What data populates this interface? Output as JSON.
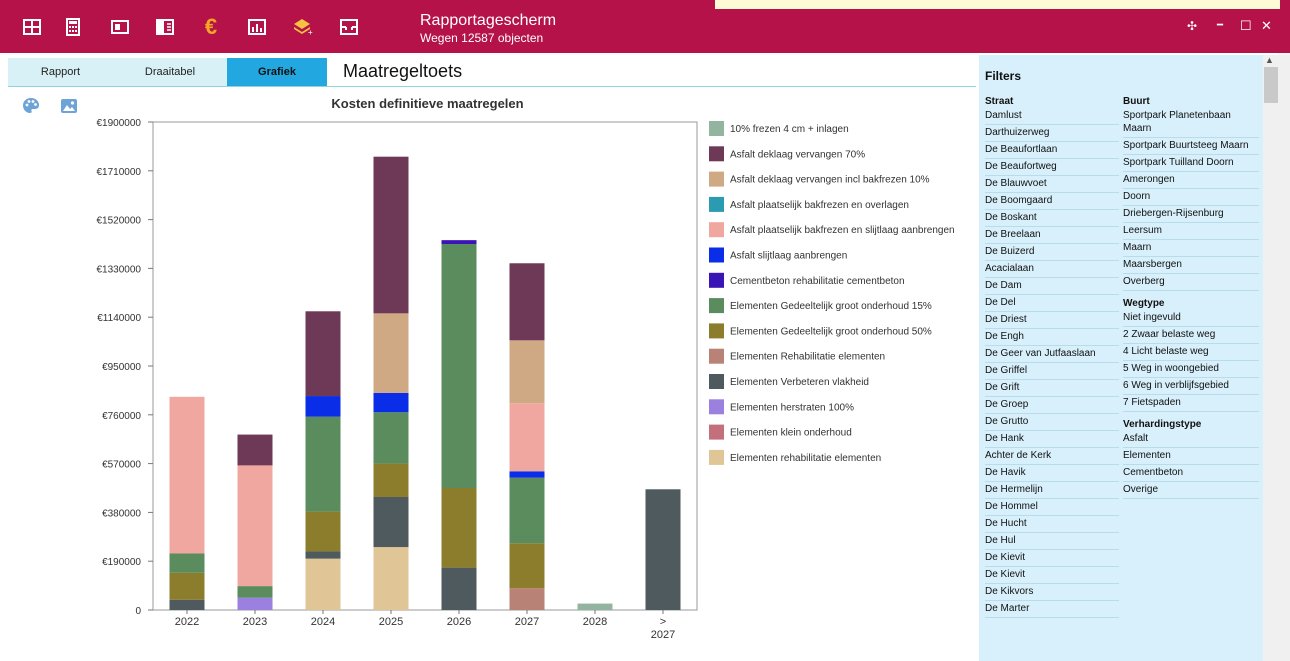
{
  "titlebar": {
    "title": "Rapportagescherm",
    "subtitle": "Wegen 12587 objecten",
    "icons": [
      "grid-icon",
      "calculator-icon",
      "card-icon",
      "layout-icon",
      "euro-icon",
      "chart-icon",
      "layers-icon",
      "inbox-icon"
    ],
    "controls": {
      "move": "✣",
      "minimize": "━",
      "maximize": "☐",
      "close": "✕"
    },
    "colors": {
      "bar": "#b5124a",
      "euro": "#f5a623"
    }
  },
  "tabs": [
    {
      "label": "Rapport"
    },
    {
      "label": "Draaitabel"
    },
    {
      "label": "Grafiek",
      "active": true
    }
  ],
  "section_title": "Maatregeltoets",
  "chart_data": {
    "type": "bar",
    "stacked": true,
    "title": "Kosten definitieve maatregelen",
    "categories": [
      "2022",
      "2023",
      "2024",
      "2025",
      "2026",
      "2027",
      "2028",
      ">\n2027"
    ],
    "ylim": [
      0,
      1900000
    ],
    "yticks": [
      0,
      190000,
      380000,
      570000,
      760000,
      950000,
      1140000,
      1330000,
      1520000,
      1710000,
      1900000
    ],
    "ytick_labels": [
      "0",
      "€190000",
      "€380000",
      "€570000",
      "€760000",
      "€950000",
      "€1140000",
      "€1330000",
      "€1520000",
      "€1710000",
      "€1900000"
    ],
    "legend_position": "right",
    "series": [
      {
        "name": "10% frezen 4 cm + inlagen",
        "color": "#93b5a0",
        "values": [
          0,
          0,
          0,
          0,
          0,
          0,
          25000,
          0
        ]
      },
      {
        "name": "Asfalt deklaag vervangen 70%",
        "color": "#6e3957",
        "values": [
          0,
          120000,
          330000,
          610000,
          0,
          300000,
          0,
          0
        ]
      },
      {
        "name": "Asfalt deklaag vervangen incl bakfrezen 10%",
        "color": "#cfa884",
        "values": [
          0,
          0,
          0,
          310000,
          0,
          245000,
          0,
          0
        ]
      },
      {
        "name": "Asfalt plaatselijk bakfrezen en overlagen",
        "color": "#2a9bb0",
        "values": [
          0,
          0,
          0,
          0,
          0,
          0,
          0,
          0
        ]
      },
      {
        "name": "Asfalt plaatselijk bakfrezen en slijtlaag aanbrengen",
        "color": "#f0a7a0",
        "values": [
          610000,
          470000,
          0,
          0,
          0,
          265000,
          0,
          0
        ]
      },
      {
        "name": "Asfalt slijtlaag aanbrengen",
        "color": "#0a2ee8",
        "values": [
          0,
          0,
          80000,
          75000,
          0,
          25000,
          0,
          0
        ]
      },
      {
        "name": "Cementbeton rehabilitatie cementbeton",
        "color": "#3a14b5",
        "values": [
          0,
          0,
          0,
          0,
          15000,
          0,
          0,
          0
        ]
      },
      {
        "name": "Elementen Gedeeltelijk groot onderhoud 15%",
        "color": "#5a8c5e",
        "values": [
          75000,
          45000,
          370000,
          200000,
          950000,
          255000,
          0,
          0
        ]
      },
      {
        "name": "Elementen Gedeeltelijk groot onderhoud 50%",
        "color": "#8c7d2c",
        "values": [
          105000,
          0,
          155000,
          130000,
          310000,
          175000,
          0,
          0
        ]
      },
      {
        "name": "Elementen Rehabilitatie elementen",
        "color": "#b98276",
        "values": [
          0,
          0,
          0,
          0,
          0,
          85000,
          0,
          0
        ]
      },
      {
        "name": "Elementen Verbeteren vlakheid",
        "color": "#4f5a5f",
        "values": [
          40000,
          0,
          28000,
          195000,
          165000,
          0,
          0,
          470000
        ]
      },
      {
        "name": "Elementen herstraten 100%",
        "color": "#9b80e0",
        "values": [
          0,
          48000,
          0,
          0,
          0,
          0,
          0,
          0
        ]
      },
      {
        "name": "Elementen klein onderhoud",
        "color": "#c4707c",
        "values": [
          0,
          0,
          0,
          0,
          0,
          0,
          0,
          0
        ]
      },
      {
        "name": "Elementen rehabilitatie elementen",
        "color": "#e0c596",
        "values": [
          0,
          0,
          200000,
          245000,
          0,
          0,
          0,
          0
        ]
      }
    ]
  },
  "filters": {
    "title": "Filters",
    "straat": {
      "title": "Straat",
      "items": [
        "Damlust",
        "Darthuizerweg",
        "De Beaufortlaan",
        "De Beaufortweg",
        "De Blauwvoet",
        "De Boomgaard",
        "De Boskant",
        "De Breelaan",
        "De Buizerd",
        "Acacialaan",
        "De Dam",
        "De Del",
        "De Driest",
        "De Engh",
        "De Geer van Jutfaaslaan",
        "De Griffel",
        "De Grift",
        "De Groep",
        "De Grutto",
        "De Hank",
        "Achter de Kerk",
        "De Havik",
        "De Hermelijn",
        "De Hommel",
        "De Hucht",
        "De Hul",
        "De Kievit",
        "De Kievit",
        "De Kikvors",
        "De Marter"
      ]
    },
    "buurt": {
      "title": "Buurt",
      "items": [
        "Sportpark Planetenbaan Maarn",
        "Sportpark Buurtsteeg Maarn",
        "Sportpark Tuilland Doorn",
        "Amerongen",
        "Doorn",
        "Driebergen-Rijsenburg",
        "Leersum",
        "Maarn",
        "Maarsbergen",
        "Overberg"
      ]
    },
    "wegtype": {
      "title": "Wegtype",
      "items": [
        "Niet ingevuld",
        "2 Zwaar belaste weg",
        "4 Licht belaste weg",
        "5 Weg in woongebied",
        "6 Weg in verblijfsgebied",
        "7 Fietspaden"
      ]
    },
    "verhardingstype": {
      "title": "Verhardingstype",
      "items": [
        "Asfalt",
        "Elementen",
        "Cementbeton",
        "Overige"
      ]
    }
  }
}
